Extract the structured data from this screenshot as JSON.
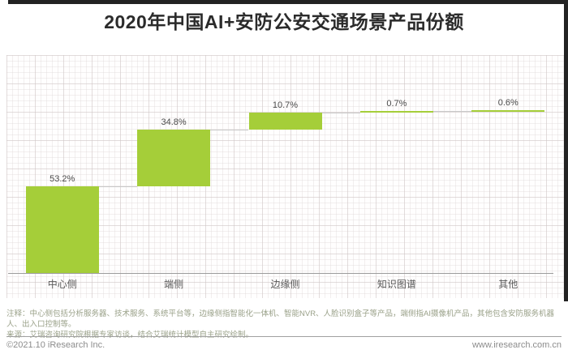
{
  "title": "2020年中国AI+安防公安交通场景产品份额",
  "chart_data": {
    "type": "bar",
    "subtype": "waterfall",
    "title": "2020年中国AI+安防公安交通场景产品份额",
    "categories": [
      "中心侧",
      "端侧",
      "边缘侧",
      "知识图谱",
      "其他"
    ],
    "values": [
      53.2,
      34.8,
      10.7,
      0.7,
      0.6
    ],
    "labels": [
      "53.2%",
      "34.8%",
      "10.7%",
      "0.7%",
      "0.6%"
    ],
    "unit": "%",
    "ylim": [
      0,
      100
    ],
    "bar_color": "#a5ce39",
    "connector_color": "#c9c9c9",
    "grid": "graph-paper",
    "legend": "none",
    "xlabel": "",
    "ylabel": ""
  },
  "notes": {
    "annotation": "注释：中心侧包括分析服务器、技术服务、系统平台等，边缘侧指智能化一体机、智能NVR、人脸识别盒子等产品，端侧指AI摄像机产品，其他包含安防服务机器人、出入口控制等。",
    "source": "来源：艾瑞咨询研究院根据专家访谈，结合艾瑞统计模型自主研究绘制。"
  },
  "footer": {
    "copyright": "©2021.10 iResearch Inc.",
    "website": "www.iresearch.com.cn"
  }
}
